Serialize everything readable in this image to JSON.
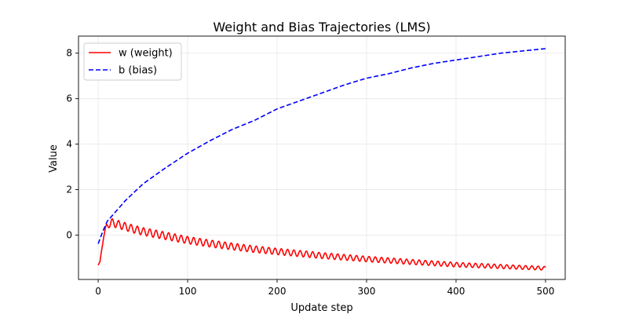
{
  "chart_data": {
    "type": "line",
    "title": "Weight and Bias Trajectories (LMS)",
    "xlabel": "Update step",
    "ylabel": "Value",
    "xlim": [
      -22,
      522
    ],
    "ylim": [
      -1.95,
      8.75
    ],
    "xticks": [
      0,
      100,
      200,
      300,
      400,
      500
    ],
    "yticks": [
      0,
      2,
      4,
      6,
      8
    ],
    "grid": true,
    "legend_position": "top-left",
    "series": [
      {
        "name": "w (weight)",
        "color": "#ff0000",
        "style": "solid",
        "points": [
          [
            0,
            -1.32
          ],
          [
            2,
            -1.2
          ],
          [
            4,
            -0.6
          ],
          [
            6,
            -0.05
          ],
          [
            8,
            0.22
          ],
          [
            10,
            0.4
          ],
          [
            12,
            0.5
          ],
          [
            15,
            0.55
          ],
          [
            20,
            0.5
          ],
          [
            30,
            0.38
          ],
          [
            40,
            0.26
          ],
          [
            50,
            0.16
          ],
          [
            75,
            -0.03
          ],
          [
            100,
            -0.22
          ],
          [
            125,
            -0.37
          ],
          [
            150,
            -0.5
          ],
          [
            175,
            -0.62
          ],
          [
            200,
            -0.72
          ],
          [
            250,
            -0.9
          ],
          [
            300,
            -1.05
          ],
          [
            350,
            -1.18
          ],
          [
            400,
            -1.3
          ],
          [
            450,
            -1.38
          ],
          [
            500,
            -1.46
          ]
        ],
        "oscillation_amplitude": [
          0.18,
          0.08
        ],
        "oscillation_period": 7
      },
      {
        "name": "b (bias)",
        "color": "#0000ff",
        "style": "dashed",
        "points": [
          [
            0,
            -0.38
          ],
          [
            5,
            0.15
          ],
          [
            10,
            0.6
          ],
          [
            20,
            1.05
          ],
          [
            30,
            1.5
          ],
          [
            50,
            2.25
          ],
          [
            75,
            2.95
          ],
          [
            100,
            3.6
          ],
          [
            125,
            4.15
          ],
          [
            150,
            4.65
          ],
          [
            175,
            5.05
          ],
          [
            200,
            5.55
          ],
          [
            225,
            5.9
          ],
          [
            250,
            6.25
          ],
          [
            275,
            6.6
          ],
          [
            300,
            6.9
          ],
          [
            325,
            7.1
          ],
          [
            350,
            7.35
          ],
          [
            375,
            7.55
          ],
          [
            400,
            7.7
          ],
          [
            425,
            7.85
          ],
          [
            450,
            8.0
          ],
          [
            475,
            8.1
          ],
          [
            500,
            8.2
          ]
        ]
      }
    ]
  }
}
